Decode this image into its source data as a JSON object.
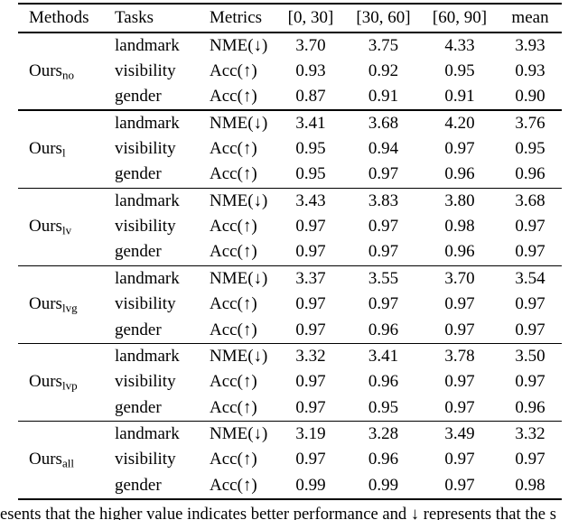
{
  "table": {
    "columns": [
      "Methods",
      "Tasks",
      "Metrics",
      "[0, 30]",
      "[30, 60]",
      "[60, 90]",
      "mean"
    ],
    "groups": [
      {
        "method_base": "Ours",
        "method_sub": "no",
        "rows": [
          {
            "task": "landmark",
            "metric": "NME(↓)",
            "values": [
              "3.70",
              "3.75",
              "4.33",
              "3.93"
            ]
          },
          {
            "task": "visibility",
            "metric": "Acc(↑)",
            "values": [
              "0.93",
              "0.92",
              "0.95",
              "0.93"
            ]
          },
          {
            "task": "gender",
            "metric": "Acc(↑)",
            "values": [
              "0.87",
              "0.91",
              "0.91",
              "0.90"
            ]
          }
        ]
      },
      {
        "method_base": "Ours",
        "method_sub": "l",
        "rows": [
          {
            "task": "landmark",
            "metric": "NME(↓)",
            "values": [
              "3.41",
              "3.68",
              "4.20",
              "3.76"
            ]
          },
          {
            "task": "visibility",
            "metric": "Acc(↑)",
            "values": [
              "0.95",
              "0.94",
              "0.97",
              "0.95"
            ]
          },
          {
            "task": "gender",
            "metric": "Acc(↑)",
            "values": [
              "0.95",
              "0.97",
              "0.96",
              "0.96"
            ]
          }
        ]
      },
      {
        "method_base": "Ours",
        "method_sub": "lv",
        "rows": [
          {
            "task": "landmark",
            "metric": "NME(↓)",
            "values": [
              "3.43",
              "3.83",
              "3.80",
              "3.68"
            ]
          },
          {
            "task": "visibility",
            "metric": "Acc(↑)",
            "values": [
              "0.97",
              "0.97",
              "0.98",
              "0.97"
            ]
          },
          {
            "task": "gender",
            "metric": "Acc(↑)",
            "values": [
              "0.97",
              "0.97",
              "0.96",
              "0.97"
            ]
          }
        ]
      },
      {
        "method_base": "Ours",
        "method_sub": "lvg",
        "rows": [
          {
            "task": "landmark",
            "metric": "NME(↓)",
            "values": [
              "3.37",
              "3.55",
              "3.70",
              "3.54"
            ]
          },
          {
            "task": "visibility",
            "metric": "Acc(↑)",
            "values": [
              "0.97",
              "0.97",
              "0.97",
              "0.97"
            ]
          },
          {
            "task": "gender",
            "metric": "Acc(↑)",
            "values": [
              "0.97",
              "0.96",
              "0.97",
              "0.97"
            ]
          }
        ]
      },
      {
        "method_base": "Ours",
        "method_sub": "lvp",
        "rows": [
          {
            "task": "landmark",
            "metric": "NME(↓)",
            "values": [
              "3.32",
              "3.41",
              "3.78",
              "3.50"
            ]
          },
          {
            "task": "visibility",
            "metric": "Acc(↑)",
            "values": [
              "0.97",
              "0.96",
              "0.97",
              "0.97"
            ]
          },
          {
            "task": "gender",
            "metric": "Acc(↑)",
            "values": [
              "0.97",
              "0.95",
              "0.97",
              "0.96"
            ]
          }
        ]
      },
      {
        "method_base": "Ours",
        "method_sub": "all",
        "rows": [
          {
            "task": "landmark",
            "metric": "NME(↓)",
            "values": [
              "3.19",
              "3.28",
              "3.49",
              "3.32"
            ]
          },
          {
            "task": "visibility",
            "metric": "Acc(↑)",
            "values": [
              "0.97",
              "0.96",
              "0.97",
              "0.97"
            ]
          },
          {
            "task": "gender",
            "metric": "Acc(↑)",
            "values": [
              "0.99",
              "0.99",
              "0.97",
              "0.98"
            ]
          }
        ]
      }
    ]
  },
  "caption": {
    "text": "esents that the higher value indicates better performance and ↓ represents that the s"
  },
  "colors": {
    "background": "#ffffff",
    "text": "#000000",
    "rule": "#000000"
  }
}
